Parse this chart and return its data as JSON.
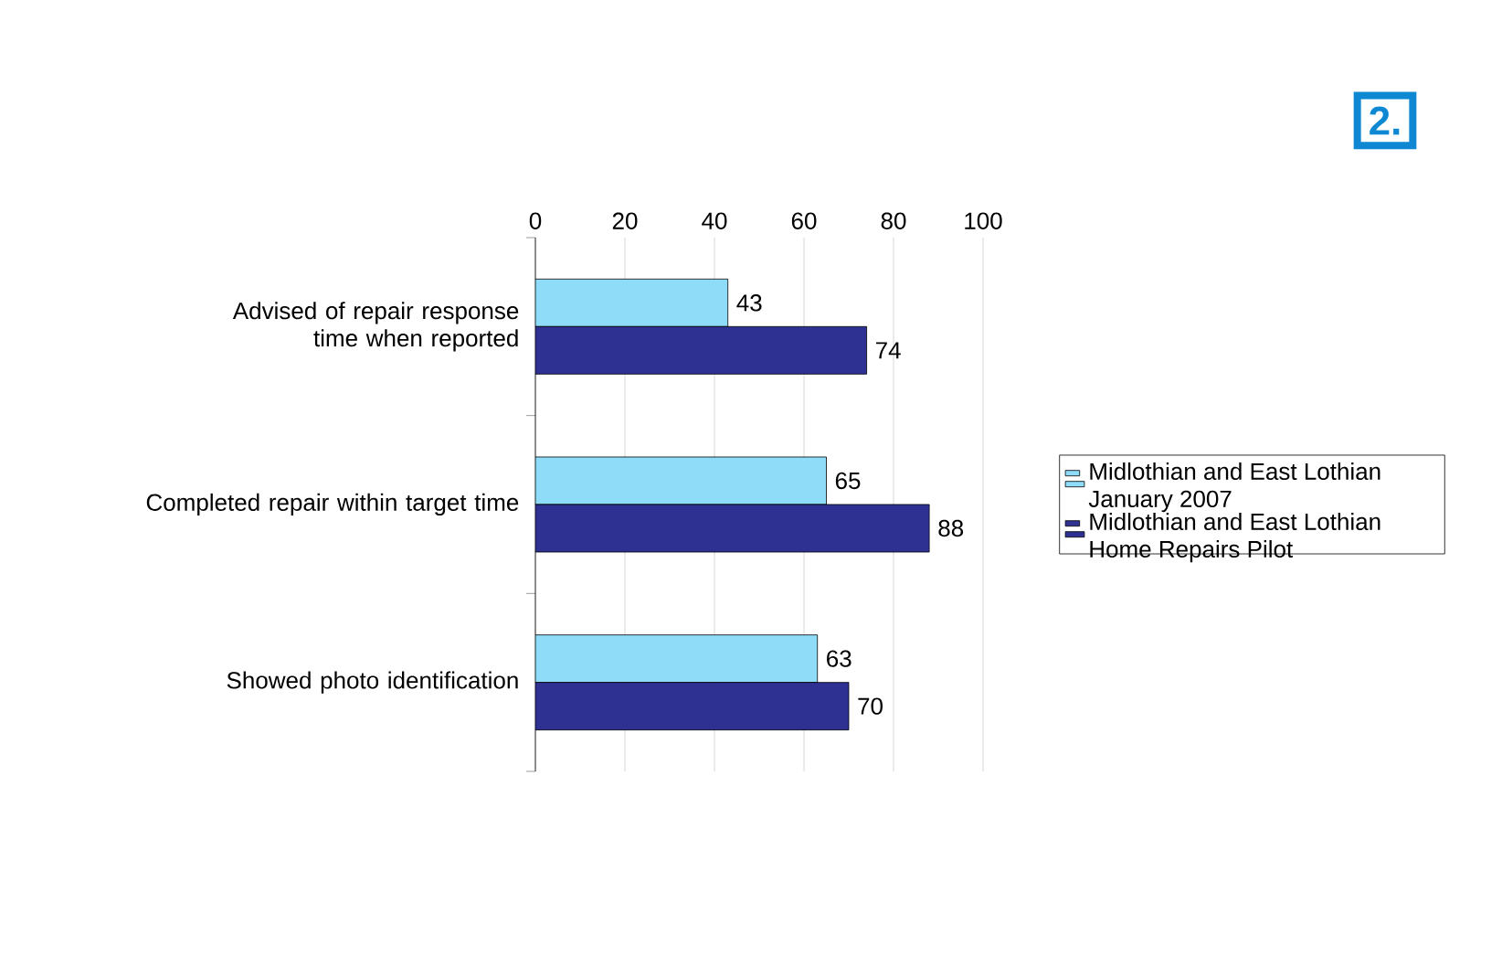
{
  "chart_data": {
    "type": "bar",
    "orientation": "horizontal",
    "categories": [
      "Advised of repair response time when reported",
      "Completed repair within target time",
      "Showed photo identification"
    ],
    "series": [
      {
        "name": "Midlothian and East Lothian January 2007",
        "color": "#8fdcf8",
        "values": [
          43,
          65,
          63
        ]
      },
      {
        "name": "Midlothian and East Lothian Home Repairs Pilot",
        "color": "#2e3192",
        "values": [
          74,
          88,
          70
        ]
      }
    ],
    "xlim": [
      0,
      100
    ],
    "xticks": [
      0,
      20,
      40,
      60,
      80,
      100
    ],
    "grid": "x",
    "legend": "right",
    "data_labels": true,
    "annotations": [
      "2."
    ]
  }
}
